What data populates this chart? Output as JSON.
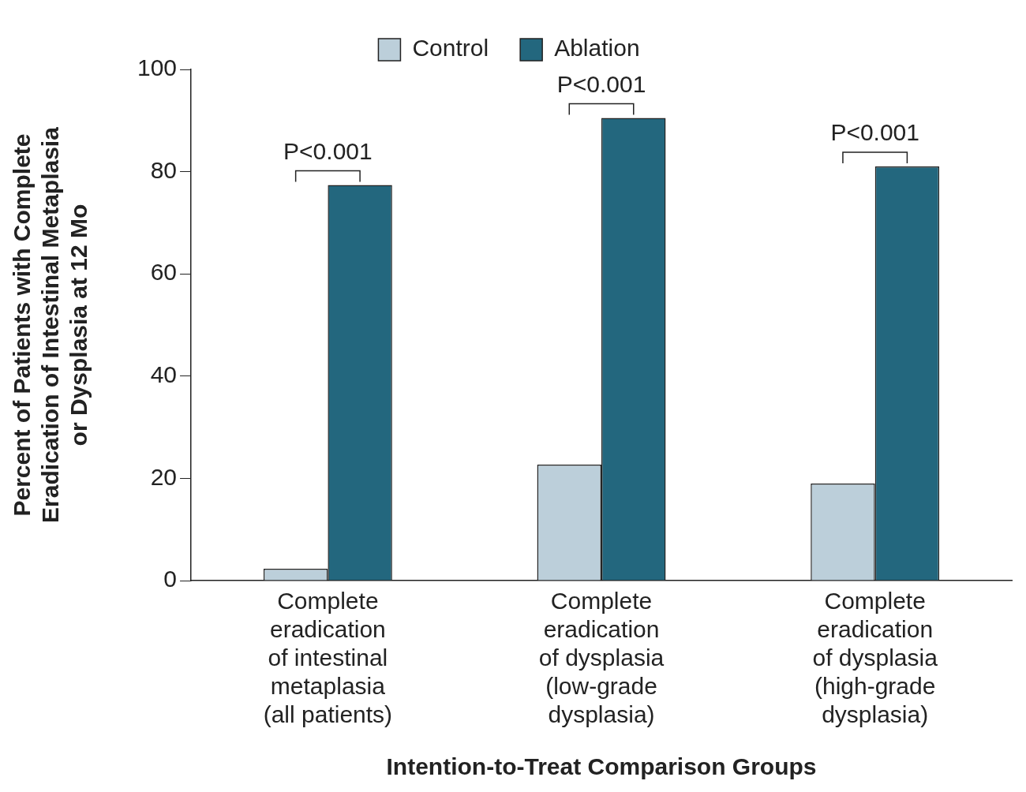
{
  "chart_data": {
    "type": "bar",
    "xlabel": "Intention-to-Treat Comparison Groups",
    "ylabel": "Percent of Patients with Complete\nEradication of Intestinal Metaplasia\nor Dysplasia at 12 Mo",
    "categories": [
      "Complete\neradication\nof intestinal\nmetaplasia\n(all patients)",
      "Complete\neradication\nof dysplasia\n(low-grade\ndysplasia)",
      "Complete\neradication\nof dysplasia\n(high-grade\ndysplasia)"
    ],
    "series": [
      {
        "name": "Control",
        "color": "#bccfda",
        "values": [
          2.3,
          22.7,
          19.0
        ]
      },
      {
        "name": "Ablation",
        "color": "#23677e",
        "values": [
          77.4,
          90.5,
          81.0
        ]
      }
    ],
    "ylim": [
      0,
      100
    ],
    "yticks": [
      0,
      20,
      40,
      60,
      80,
      100
    ],
    "grid": false,
    "legend": "top",
    "annotations": [
      "P<0.001",
      "P<0.001",
      "P<0.001"
    ]
  }
}
